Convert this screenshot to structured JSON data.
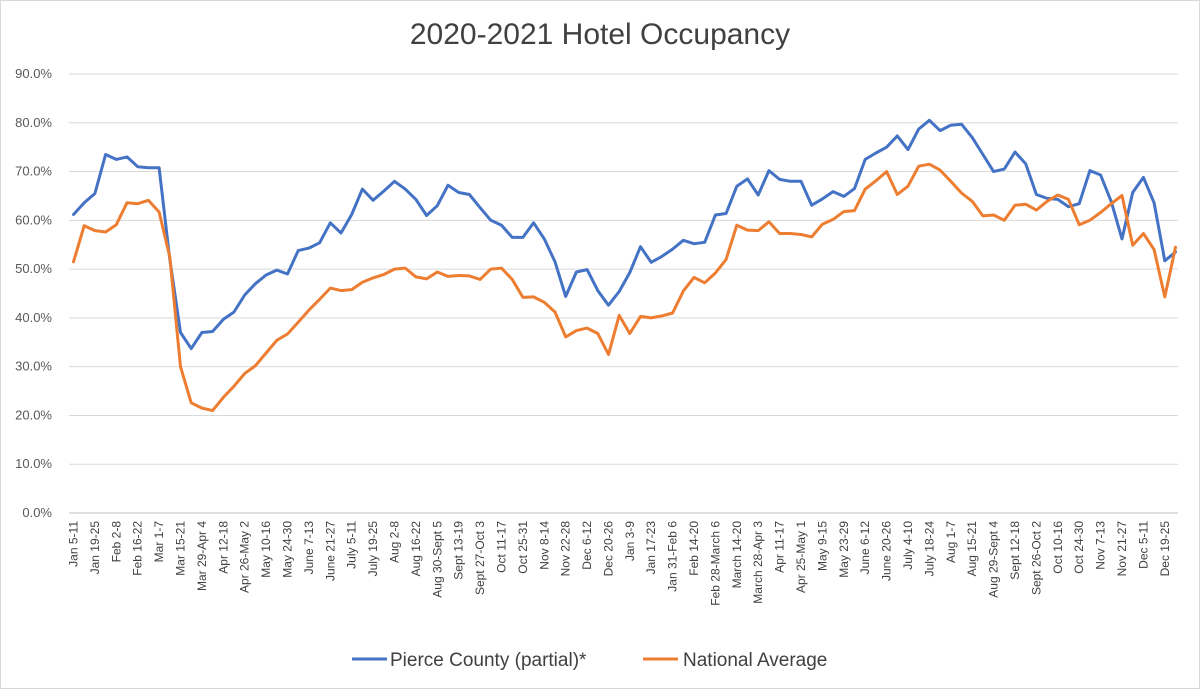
{
  "chart_data": {
    "type": "line",
    "title": "2020-2021 Hotel Occupancy",
    "xlabel": "",
    "ylabel": "",
    "ylim": [
      0,
      90
    ],
    "yticks": [
      "0.0%",
      "10.0%",
      "20.0%",
      "30.0%",
      "40.0%",
      "50.0%",
      "60.0%",
      "70.0%",
      "80.0%",
      "90.0%"
    ],
    "grid": true,
    "legend": "bottom",
    "x_tick_labels": [
      "Jan 5-11",
      "Jan 19-25",
      "Feb 2-8",
      "Feb 16-22",
      "Mar 1-7",
      "Mar 15-21",
      "Mar 29-Apr 4",
      "Apr 12-18",
      "Apr 26-May 2",
      "May 10-16",
      "May 24-30",
      "June 7-13",
      "June 21-27",
      "July 5-11",
      "July 19-25",
      "Aug 2-8",
      "Aug 16-22",
      "Aug 30-Sept 5",
      "Sept 13-19",
      "Sept 27-Oct 3",
      "Oct 11-17",
      "Oct 25-31",
      "Nov 8-14",
      "Nov 22-28",
      "Dec 6-12",
      "Dec 20-26",
      "Jan 3-9",
      "Jan 17-23",
      "Jan 31-Feb 6",
      "Feb 14-20",
      "Feb 28-March 6",
      "March 14-20",
      "March 28-Apr 3",
      "Apr 11-17",
      "Apr 25-May 1",
      "May 9-15",
      "May 23-29",
      "June 6-12",
      "June 20-26",
      "July 4-10",
      "July 18-24",
      "Aug 1-7",
      "Aug 15-21",
      "Aug 29-Sept 4",
      "Sept 12-18",
      "Sept 26-Oct 2",
      "Oct 10-16",
      "Oct 24-30",
      "Nov 7-13",
      "Nov 21-27",
      "Dec 5-11",
      "Dec 19-25"
    ],
    "series": [
      {
        "name": "Pierce County (partial)*",
        "color": "#4472c4",
        "values": [
          61.2,
          63.6,
          65.5,
          73.5,
          72.5,
          73.0,
          71.0,
          70.8,
          70.8,
          52.0,
          37.0,
          33.7,
          37.0,
          37.2,
          39.7,
          41.2,
          44.7,
          47.0,
          48.8,
          49.8,
          49.0,
          53.8,
          54.3,
          55.4,
          59.5,
          57.4,
          61.2,
          66.4,
          64.1,
          66.0,
          68.0,
          66.4,
          64.3,
          61.0,
          63.0,
          67.2,
          65.7,
          65.3,
          62.6,
          60.0,
          59.0,
          56.5,
          56.5,
          59.5,
          56.2,
          51.5,
          44.4,
          49.4,
          49.9,
          45.6,
          42.6,
          45.4,
          49.3,
          54.6,
          51.4,
          52.6,
          54.1,
          55.9,
          55.2,
          55.5,
          61.1,
          61.4,
          67.0,
          68.5,
          65.2,
          70.2,
          68.4,
          68.0,
          68.0,
          63.1,
          64.4,
          65.9,
          64.9,
          66.5,
          72.5,
          73.8,
          75.0,
          77.3,
          74.5,
          78.7,
          80.5,
          78.4,
          79.5,
          79.7,
          77.0,
          73.5,
          70.0,
          70.5,
          74.0,
          71.6,
          65.3,
          64.5,
          64.3,
          62.8,
          63.4,
          70.2,
          69.3,
          63.8,
          56.2,
          65.7,
          68.8,
          63.6,
          51.7,
          53.5
        ]
      },
      {
        "name": "National Average",
        "color": "#ed7d31",
        "values": [
          51.5,
          58.9,
          57.9,
          57.6,
          59.1,
          63.6,
          63.4,
          64.1,
          61.7,
          52.5,
          30.0,
          22.6,
          21.5,
          21.0,
          23.7,
          26.0,
          28.6,
          30.2,
          32.8,
          35.4,
          36.7,
          39.1,
          41.6,
          43.8,
          46.1,
          45.6,
          45.8,
          47.3,
          48.2,
          48.9,
          50.0,
          50.2,
          48.4,
          48.0,
          49.4,
          48.5,
          48.7,
          48.6,
          47.9,
          50.0,
          50.2,
          47.9,
          44.2,
          44.3,
          43.2,
          41.2,
          36.1,
          37.4,
          37.9,
          36.8,
          32.5,
          40.5,
          36.8,
          40.3,
          40.0,
          40.4,
          41.0,
          45.5,
          48.3,
          47.2,
          49.2,
          52.0,
          59.0,
          58.0,
          57.9,
          59.7,
          57.3,
          57.3,
          57.1,
          56.6,
          59.2,
          60.2,
          61.8,
          62.0,
          66.4,
          68.1,
          70.0,
          65.3,
          67.0,
          71.1,
          71.5,
          70.3,
          68.0,
          65.6,
          63.9,
          60.9,
          61.1,
          60.0,
          63.1,
          63.3,
          62.1,
          63.9,
          65.2,
          64.3,
          59.1,
          60.0,
          61.6,
          63.4,
          65.1,
          54.9,
          57.3,
          54.0,
          44.3,
          54.5
        ]
      }
    ]
  }
}
